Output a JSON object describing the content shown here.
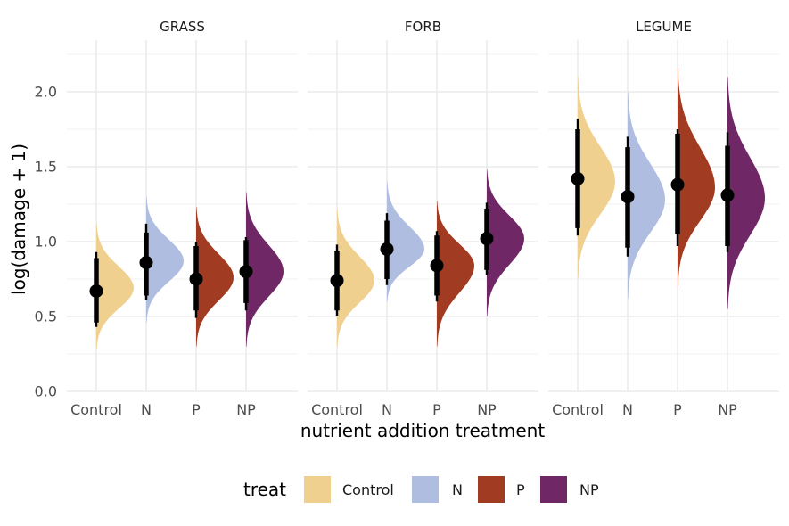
{
  "chart_data": {
    "type": "half-violin with point-interval",
    "x_label": "nutrient addition treatment",
    "y_label": "log(damage + 1)",
    "y_ticks": [
      "0.0",
      "0.5",
      "1.0",
      "1.5",
      "2.0"
    ],
    "ylim": [
      0,
      2.3
    ],
    "grid": true,
    "categories": [
      "Control",
      "N",
      "P",
      "NP"
    ],
    "legend": {
      "title": "treat",
      "position": "bottom",
      "items": [
        {
          "label": "Control",
          "color": "#f0d08e"
        },
        {
          "label": "N",
          "color": "#aebde0"
        },
        {
          "label": "P",
          "color": "#a13b22"
        },
        {
          "label": "NP",
          "color": "#6f2766"
        }
      ]
    },
    "panels": [
      {
        "title": "GRASS",
        "groups": [
          {
            "treat": "Control",
            "median": 0.67,
            "interval_66": [
              0.46,
              0.89
            ],
            "interval_95": [
              0.43,
              0.93
            ],
            "density_range": [
              0.28,
              1.12
            ],
            "density_peak": 0.69
          },
          {
            "treat": "N",
            "median": 0.86,
            "interval_66": [
              0.64,
              1.06
            ],
            "interval_95": [
              0.61,
              1.12
            ],
            "density_range": [
              0.46,
              1.3
            ],
            "density_peak": 0.87
          },
          {
            "treat": "P",
            "median": 0.75,
            "interval_66": [
              0.54,
              0.97
            ],
            "interval_95": [
              0.49,
              1.0
            ],
            "density_range": [
              0.3,
              1.23
            ],
            "density_peak": 0.76
          },
          {
            "treat": "NP",
            "median": 0.8,
            "interval_66": [
              0.59,
              1.01
            ],
            "interval_95": [
              0.54,
              1.03
            ],
            "density_range": [
              0.3,
              1.33
            ],
            "density_peak": 0.8
          }
        ]
      },
      {
        "title": "FORB",
        "groups": [
          {
            "treat": "Control",
            "median": 0.74,
            "interval_66": [
              0.54,
              0.94
            ],
            "interval_95": [
              0.5,
              0.98
            ],
            "density_range": [
              0.3,
              1.22
            ],
            "density_peak": 0.74
          },
          {
            "treat": "N",
            "median": 0.95,
            "interval_66": [
              0.75,
              1.14
            ],
            "interval_95": [
              0.71,
              1.19
            ],
            "density_range": [
              0.6,
              1.4
            ],
            "density_peak": 0.95
          },
          {
            "treat": "P",
            "median": 0.84,
            "interval_66": [
              0.64,
              1.04
            ],
            "interval_95": [
              0.6,
              1.07
            ],
            "density_range": [
              0.3,
              1.27
            ],
            "density_peak": 0.84
          },
          {
            "treat": "NP",
            "median": 1.02,
            "interval_66": [
              0.81,
              1.22
            ],
            "interval_95": [
              0.78,
              1.26
            ],
            "density_range": [
              0.5,
              1.48
            ],
            "density_peak": 1.02
          }
        ]
      },
      {
        "title": "LEGUME",
        "groups": [
          {
            "treat": "Control",
            "median": 1.42,
            "interval_66": [
              1.09,
              1.75
            ],
            "interval_95": [
              1.04,
              1.82
            ],
            "density_range": [
              0.75,
              2.1
            ],
            "density_peak": 1.4
          },
          {
            "treat": "N",
            "median": 1.3,
            "interval_66": [
              0.96,
              1.63
            ],
            "interval_95": [
              0.9,
              1.7
            ],
            "density_range": [
              0.62,
              2.0
            ],
            "density_peak": 1.28
          },
          {
            "treat": "P",
            "median": 1.38,
            "interval_66": [
              1.05,
              1.72
            ],
            "interval_95": [
              0.97,
              1.75
            ],
            "density_range": [
              0.7,
              2.16
            ],
            "density_peak": 1.36
          },
          {
            "treat": "NP",
            "median": 1.31,
            "interval_66": [
              0.97,
              1.64
            ],
            "interval_95": [
              0.93,
              1.73
            ],
            "density_range": [
              0.55,
              2.1
            ],
            "density_peak": 1.29
          }
        ]
      }
    ]
  }
}
